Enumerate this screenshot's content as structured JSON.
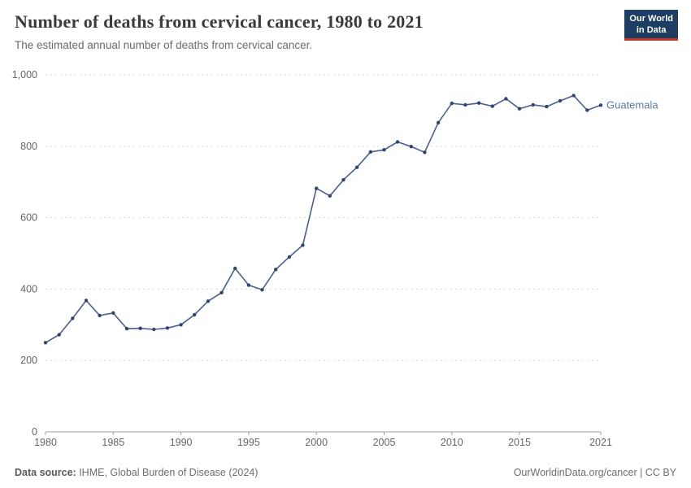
{
  "header": {
    "title": "Number of deaths from cervical cancer, 1980 to 2021",
    "subtitle": "The estimated annual number of deaths from cervical cancer.",
    "logo": {
      "line1": "Our World",
      "line2": "in Data"
    }
  },
  "colors": {
    "logo_bg": "#1d3d63",
    "logo_accent": "#c0392b",
    "line": "#4a5f91",
    "point": "#33456f",
    "label": "#5b7ba6",
    "grid": "#d9d9d9",
    "axis": "#a0a0a0"
  },
  "chart_data": {
    "type": "line",
    "title": "Number of deaths from cervical cancer, 1980 to 2021",
    "xlabel": "",
    "ylabel": "",
    "xlim": [
      1980,
      2021
    ],
    "ylim": [
      0,
      1000
    ],
    "grid": "dashed horizontal",
    "legend_position": "end-of-line label",
    "y_ticks": [
      0,
      200,
      400,
      600,
      800,
      1000
    ],
    "y_tick_labels": [
      "0",
      "200",
      "400",
      "600",
      "800",
      "1,000"
    ],
    "x_ticks": [
      1980,
      1985,
      1990,
      1995,
      2000,
      2005,
      2010,
      2015,
      2021
    ],
    "x_tick_labels": [
      "1980",
      "1985",
      "1990",
      "1995",
      "2000",
      "2005",
      "2010",
      "2015",
      "2021"
    ],
    "series": [
      {
        "name": "Guatemala",
        "x": [
          1980,
          1981,
          1982,
          1983,
          1984,
          1985,
          1986,
          1987,
          1988,
          1989,
          1990,
          1991,
          1992,
          1993,
          1994,
          1995,
          1996,
          1997,
          1998,
          1999,
          2000,
          2001,
          2002,
          2003,
          2004,
          2005,
          2006,
          2007,
          2008,
          2009,
          2010,
          2011,
          2012,
          2013,
          2014,
          2015,
          2016,
          2017,
          2018,
          2019,
          2020,
          2021
        ],
        "values": [
          250,
          272,
          318,
          368,
          326,
          333,
          289,
          290,
          287,
          291,
          300,
          328,
          366,
          390,
          458,
          411,
          398,
          455,
          490,
          523,
          682,
          661,
          706,
          741,
          784,
          790,
          812,
          799,
          783,
          866,
          920,
          916,
          921,
          912,
          933,
          905,
          916,
          911,
          927,
          942,
          901,
          915
        ]
      }
    ]
  },
  "footer": {
    "source_label": "Data source:",
    "source_text": " IHME, Global Burden of Disease (2024)",
    "right_text": "OurWorldinData.org/cancer | CC BY"
  }
}
